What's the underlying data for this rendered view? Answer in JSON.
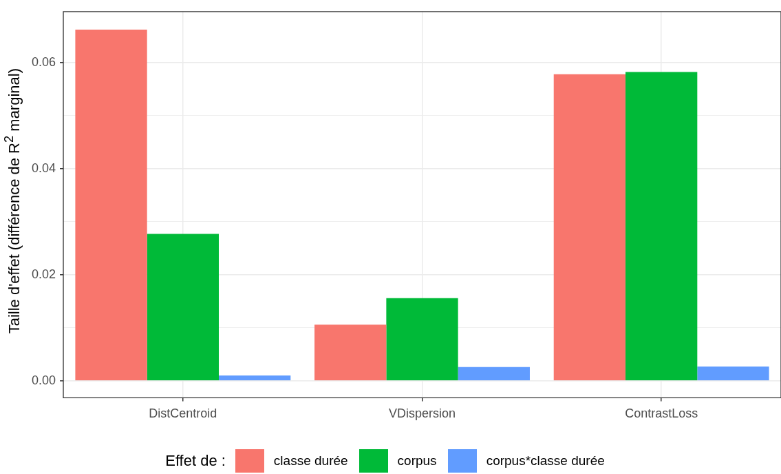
{
  "chart_data": {
    "type": "bar",
    "ylabel": "Taille d'effet (différence de R$^{2}$ marginal)",
    "legend_title": "Effet de :",
    "legend": "bottom",
    "grid": true,
    "categories": [
      "DistCentroid",
      "VDispersion",
      "ContrastLoss"
    ],
    "series": [
      {
        "name": "classe durée",
        "color": "#f8766d",
        "values": [
          0.0662,
          0.0106,
          0.0578
        ]
      },
      {
        "name": "corpus",
        "color": "#00ba38",
        "values": [
          0.0277,
          0.0156,
          0.0582
        ]
      },
      {
        "name": "corpus*classe durée",
        "color": "#619cff",
        "values": [
          0.001,
          0.0026,
          0.0027
        ]
      }
    ],
    "ylim": [
      -0.0032,
      0.0696
    ],
    "yticks": [
      {
        "value": 0,
        "label": "0.00"
      },
      {
        "value": 0.01,
        "label": null
      },
      {
        "value": 0.02,
        "label": "0.02"
      },
      {
        "value": 0.03,
        "label": null
      },
      {
        "value": 0.04,
        "label": "0.04"
      },
      {
        "value": 0.05,
        "label": null
      },
      {
        "value": 0.06,
        "label": "0.06"
      }
    ]
  }
}
